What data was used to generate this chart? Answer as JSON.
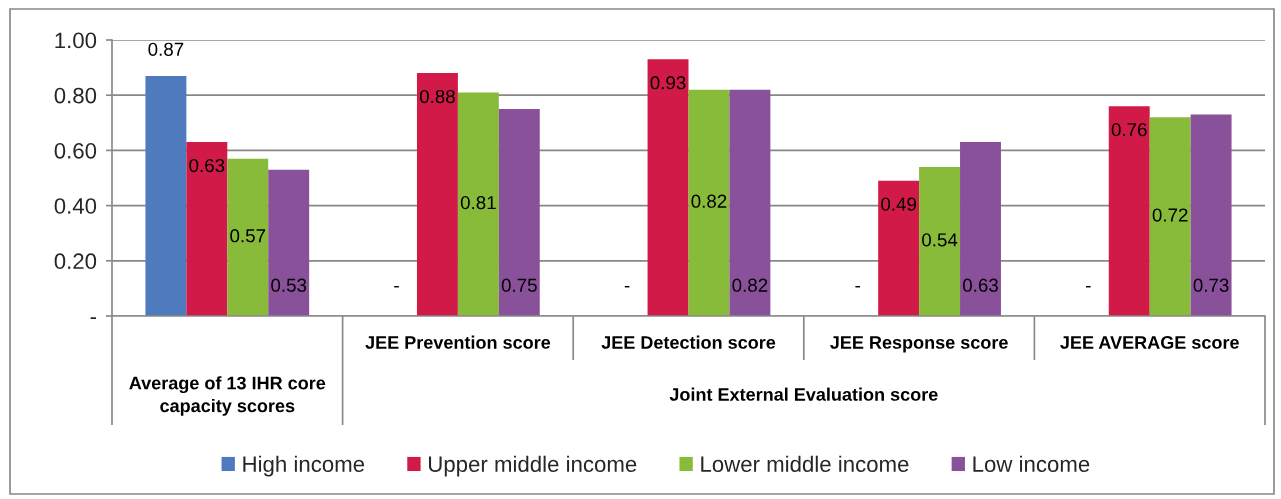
{
  "chart_data": {
    "type": "bar",
    "categories": [
      null,
      "JEE Prevention score",
      "JEE Detection score",
      "JEE Response score",
      "JEE AVERAGE score"
    ],
    "annotations": [
      "Average of 13 IHR core capacity scores",
      "Joint External Evaluation score"
    ],
    "series": [
      {
        "name": "High income",
        "color": "#4f7bbe",
        "values": [
          0.87,
          null,
          null,
          null,
          null
        ],
        "value_labels": [
          "0.87",
          "-",
          "-",
          "-",
          "-"
        ]
      },
      {
        "name": "Upper middle income",
        "color": "#d11a47",
        "values": [
          0.63,
          0.88,
          0.93,
          0.49,
          0.76
        ],
        "value_labels": [
          "0.63",
          "0.88",
          "0.93",
          "0.49",
          "0.76"
        ]
      },
      {
        "name": "Lower middle income",
        "color": "#89bb3b",
        "values": [
          0.57,
          0.81,
          0.82,
          0.54,
          0.72
        ],
        "value_labels": [
          "0.57",
          "0.81",
          "0.82",
          "0.54",
          "0.72"
        ]
      },
      {
        "name": "Low income",
        "color": "#8a519b",
        "values": [
          0.53,
          0.75,
          0.82,
          0.63,
          0.73
        ],
        "value_labels": [
          "0.53",
          "0.75",
          "0.82",
          "0.63",
          "0.73"
        ]
      }
    ],
    "ylim": [
      0,
      1.0
    ],
    "yticks": [
      {
        "value": 0,
        "label": "-"
      },
      {
        "value": 0.2,
        "label": "0.20"
      },
      {
        "value": 0.4,
        "label": "0.40"
      },
      {
        "value": 0.6,
        "label": "0.60"
      },
      {
        "value": 0.8,
        "label": "0.80"
      },
      {
        "value": 1.0,
        "label": "1.00"
      }
    ],
    "grid": "y",
    "legend": "bottom"
  }
}
